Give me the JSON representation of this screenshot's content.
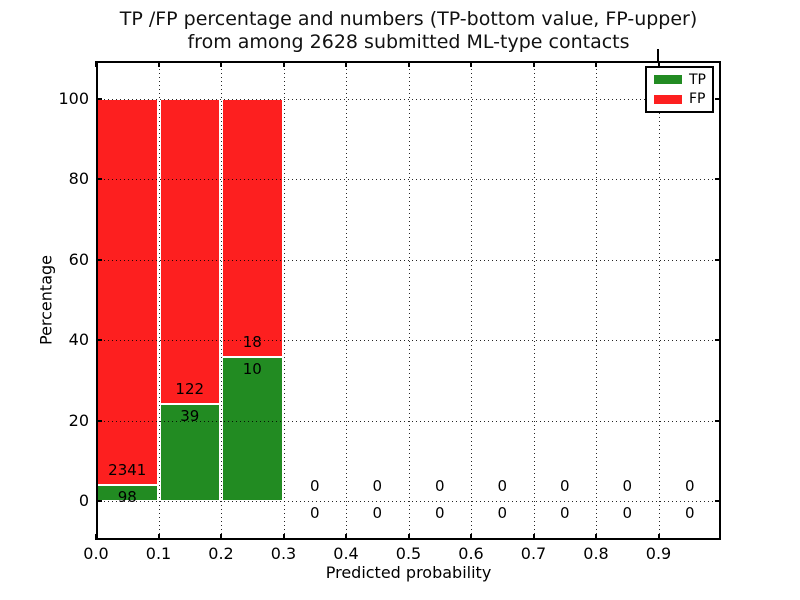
{
  "chart_data": {
    "type": "bar",
    "stacked": true,
    "normalized_to_percent": true,
    "title_line1": "TP /FP percentage and numbers (TP-bottom value, FP-upper)",
    "title_line2": "from among 2628 submitted ML-type contacts",
    "total_contacts": 2628,
    "xlabel": "Predicted probability",
    "ylabel": "Percentage",
    "xlim": [
      0.0,
      1.0
    ],
    "ylim": [
      -9.7,
      109.2
    ],
    "grid": "dotted",
    "bin_width": 0.1,
    "bin_starts": [
      0.0,
      0.1,
      0.2,
      0.3,
      0.4,
      0.5,
      0.6,
      0.7,
      0.8,
      0.9
    ],
    "xticks": [
      "0.0",
      "0.1",
      "0.2",
      "0.3",
      "0.4",
      "0.5",
      "0.6",
      "0.7",
      "0.8",
      "0.9"
    ],
    "yticks": [
      "0",
      "20",
      "40",
      "60",
      "80",
      "100"
    ],
    "ytick_values": [
      0,
      20,
      40,
      60,
      80,
      100
    ],
    "series": [
      {
        "name": "TP",
        "color": "#228b22",
        "counts": [
          98,
          39,
          10,
          0,
          0,
          0,
          0,
          0,
          0,
          0
        ],
        "pct_of_bin": [
          4.0,
          24.2,
          35.7,
          0,
          0,
          0,
          0,
          0,
          0,
          0
        ]
      },
      {
        "name": "FP",
        "color": "#fd1f1f",
        "counts": [
          2341,
          122,
          18,
          0,
          0,
          0,
          0,
          0,
          0,
          0
        ],
        "pct_of_bin": [
          96.0,
          75.8,
          64.3,
          0,
          0,
          0,
          0,
          0,
          0,
          0
        ]
      }
    ],
    "legend": {
      "position": "upper-right",
      "entries": [
        {
          "label": "TP",
          "color": "#228b22"
        },
        {
          "label": "FP",
          "color": "#fd1f1f"
        }
      ]
    }
  }
}
